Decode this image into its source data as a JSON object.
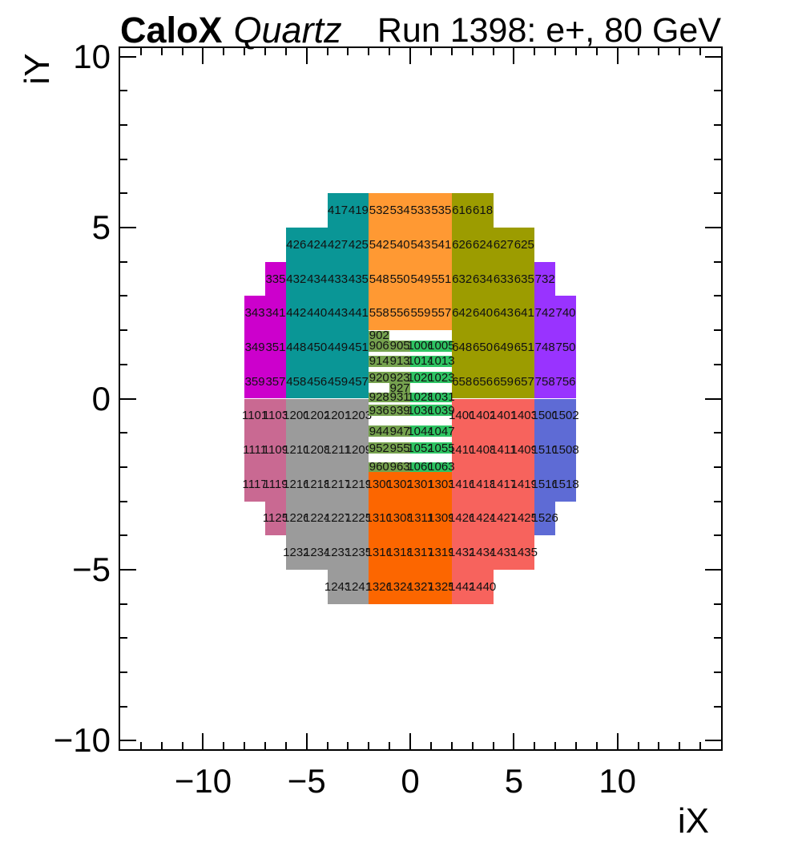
{
  "header": {
    "experiment": "CaloX",
    "detector": "Quartz",
    "run_info": "Run 1398: e+, 80 GeV"
  },
  "axes": {
    "x": {
      "title": "iX",
      "ticks": [
        {
          "value": -10,
          "label": "−10"
        },
        {
          "value": -5,
          "label": "−5"
        },
        {
          "value": 0,
          "label": "0"
        },
        {
          "value": 5,
          "label": "5"
        },
        {
          "value": 10,
          "label": "10"
        }
      ]
    },
    "y": {
      "title": "iY",
      "ticks": [
        {
          "value": 10,
          "label": "10"
        },
        {
          "value": 5,
          "label": "5"
        },
        {
          "value": 0,
          "label": "0"
        },
        {
          "value": -5,
          "label": "−5"
        },
        {
          "value": -10,
          "label": "−10"
        }
      ]
    }
  },
  "chart_data": {
    "type": "heatmap",
    "title": "CaloX Quartz",
    "subtitle": "Run 1398: e+, 80 GeV",
    "xlabel": "iX",
    "ylabel": "iY",
    "xlim": [
      -14,
      15
    ],
    "ylim": [
      -10.25,
      10.25
    ],
    "x_major": [
      -10,
      -5,
      0,
      5,
      10
    ],
    "y_major": [
      -10,
      -5,
      0,
      5,
      10
    ],
    "minor_step": 1,
    "palette": {
      "ch300": "#cc00cc",
      "ch400": "#0a9696",
      "ch500": "#ff9933",
      "ch600": "#9c9c00",
      "ch700": "#9933ff",
      "ch900": "#76a24f",
      "ch1000": "#2ec463",
      "ch1100": "#c96992",
      "ch1200": "#9b9b9b",
      "ch1300": "#fc6600",
      "ch1400": "#f7635d",
      "ch1500": "#5e6bd5"
    },
    "cells_format": "[channel_id, iX_left, iY_top, width, height, color_group]",
    "cells": [
      [
        417,
        -4,
        6,
        1,
        1,
        "ch400"
      ],
      [
        419,
        -3,
        6,
        1,
        1,
        "ch400"
      ],
      [
        426,
        -6,
        5,
        1,
        1,
        "ch400"
      ],
      [
        424,
        -5,
        5,
        1,
        1,
        "ch400"
      ],
      [
        427,
        -4,
        5,
        1,
        1,
        "ch400"
      ],
      [
        425,
        -3,
        5,
        1,
        1,
        "ch400"
      ],
      [
        432,
        -6,
        4,
        1,
        1,
        "ch400"
      ],
      [
        434,
        -5,
        4,
        1,
        1,
        "ch400"
      ],
      [
        433,
        -4,
        4,
        1,
        1,
        "ch400"
      ],
      [
        435,
        -3,
        4,
        1,
        1,
        "ch400"
      ],
      [
        442,
        -6,
        3,
        1,
        1,
        "ch400"
      ],
      [
        440,
        -5,
        3,
        1,
        1,
        "ch400"
      ],
      [
        443,
        -4,
        3,
        1,
        1,
        "ch400"
      ],
      [
        441,
        -3,
        3,
        1,
        1,
        "ch400"
      ],
      [
        448,
        -6,
        2,
        1,
        1,
        "ch400"
      ],
      [
        450,
        -5,
        2,
        1,
        1,
        "ch400"
      ],
      [
        449,
        -4,
        2,
        1,
        1,
        "ch400"
      ],
      [
        451,
        -3,
        2,
        1,
        1,
        "ch400"
      ],
      [
        458,
        -6,
        1,
        1,
        1,
        "ch400"
      ],
      [
        456,
        -5,
        1,
        1,
        1,
        "ch400"
      ],
      [
        459,
        -4,
        1,
        1,
        1,
        "ch400"
      ],
      [
        457,
        -3,
        1,
        1,
        1,
        "ch400"
      ],
      [
        532,
        -2,
        6,
        1,
        1,
        "ch500"
      ],
      [
        534,
        -1,
        6,
        1,
        1,
        "ch500"
      ],
      [
        533,
        0,
        6,
        1,
        1,
        "ch500"
      ],
      [
        535,
        1,
        6,
        1,
        1,
        "ch500"
      ],
      [
        542,
        -2,
        5,
        1,
        1,
        "ch500"
      ],
      [
        540,
        -1,
        5,
        1,
        1,
        "ch500"
      ],
      [
        543,
        0,
        5,
        1,
        1,
        "ch500"
      ],
      [
        541,
        1,
        5,
        1,
        1,
        "ch500"
      ],
      [
        548,
        -2,
        4,
        1,
        1,
        "ch500"
      ],
      [
        550,
        -1,
        4,
        1,
        1,
        "ch500"
      ],
      [
        549,
        0,
        4,
        1,
        1,
        "ch500"
      ],
      [
        551,
        1,
        4,
        1,
        1,
        "ch500"
      ],
      [
        558,
        -2,
        3,
        1,
        1,
        "ch500"
      ],
      [
        556,
        -1,
        3,
        1,
        1,
        "ch500"
      ],
      [
        559,
        0,
        3,
        1,
        1,
        "ch500"
      ],
      [
        557,
        1,
        3,
        1,
        1,
        "ch500"
      ],
      [
        616,
        2,
        6,
        1,
        1,
        "ch600"
      ],
      [
        618,
        3,
        6,
        1,
        1,
        "ch600"
      ],
      [
        626,
        2,
        5,
        1,
        1,
        "ch600"
      ],
      [
        624,
        3,
        5,
        1,
        1,
        "ch600"
      ],
      [
        627,
        4,
        5,
        1,
        1,
        "ch600"
      ],
      [
        625,
        5,
        5,
        1,
        1,
        "ch600"
      ],
      [
        632,
        2,
        4,
        1,
        1,
        "ch600"
      ],
      [
        634,
        3,
        4,
        1,
        1,
        "ch600"
      ],
      [
        633,
        4,
        4,
        1,
        1,
        "ch600"
      ],
      [
        635,
        5,
        4,
        1,
        1,
        "ch600"
      ],
      [
        642,
        2,
        3,
        1,
        1,
        "ch600"
      ],
      [
        640,
        3,
        3,
        1,
        1,
        "ch600"
      ],
      [
        643,
        4,
        3,
        1,
        1,
        "ch600"
      ],
      [
        641,
        5,
        3,
        1,
        1,
        "ch600"
      ],
      [
        648,
        2,
        2,
        1,
        1,
        "ch600"
      ],
      [
        650,
        3,
        2,
        1,
        1,
        "ch600"
      ],
      [
        649,
        4,
        2,
        1,
        1,
        "ch600"
      ],
      [
        651,
        5,
        2,
        1,
        1,
        "ch600"
      ],
      [
        658,
        2,
        1,
        1,
        1,
        "ch600"
      ],
      [
        656,
        3,
        1,
        1,
        1,
        "ch600"
      ],
      [
        659,
        4,
        1,
        1,
        1,
        "ch600"
      ],
      [
        657,
        5,
        1,
        1,
        1,
        "ch600"
      ],
      [
        335,
        -7,
        4,
        1,
        1,
        "ch300"
      ],
      [
        343,
        -8,
        3,
        1,
        1,
        "ch300"
      ],
      [
        341,
        -7,
        3,
        1,
        1,
        "ch300"
      ],
      [
        349,
        -8,
        2,
        1,
        1,
        "ch300"
      ],
      [
        351,
        -7,
        2,
        1,
        1,
        "ch300"
      ],
      [
        359,
        -8,
        1,
        1,
        1,
        "ch300"
      ],
      [
        357,
        -7,
        1,
        1,
        1,
        "ch300"
      ],
      [
        732,
        6,
        4,
        1,
        1,
        "ch700"
      ],
      [
        742,
        6,
        3,
        1,
        1,
        "ch700"
      ],
      [
        740,
        7,
        3,
        1,
        1,
        "ch700"
      ],
      [
        748,
        6,
        2,
        1,
        1,
        "ch700"
      ],
      [
        750,
        7,
        2,
        1,
        1,
        "ch700"
      ],
      [
        758,
        6,
        1,
        1,
        1,
        "ch700"
      ],
      [
        756,
        7,
        1,
        1,
        1,
        "ch700"
      ],
      [
        1101,
        -8,
        0,
        1,
        1,
        "ch1100"
      ],
      [
        1103,
        -7,
        0,
        1,
        1,
        "ch1100"
      ],
      [
        1111,
        -8,
        -1,
        1,
        1,
        "ch1100"
      ],
      [
        1109,
        -7,
        -1,
        1,
        1,
        "ch1100"
      ],
      [
        1117,
        -8,
        -2,
        1,
        1,
        "ch1100"
      ],
      [
        1119,
        -7,
        -2,
        1,
        1,
        "ch1100"
      ],
      [
        1125,
        -7,
        -3,
        1,
        1,
        "ch1100"
      ],
      [
        1200,
        -6,
        0,
        1,
        1,
        "ch1200"
      ],
      [
        1202,
        -5,
        0,
        1,
        1,
        "ch1200"
      ],
      [
        1201,
        -4,
        0,
        1,
        1,
        "ch1200"
      ],
      [
        1203,
        -3,
        0,
        1,
        1,
        "ch1200"
      ],
      [
        1210,
        -6,
        -1,
        1,
        1,
        "ch1200"
      ],
      [
        1208,
        -5,
        -1,
        1,
        1,
        "ch1200"
      ],
      [
        1211,
        -4,
        -1,
        1,
        1,
        "ch1200"
      ],
      [
        1209,
        -3,
        -1,
        1,
        1,
        "ch1200"
      ],
      [
        1216,
        -6,
        -2,
        1,
        1,
        "ch1200"
      ],
      [
        1218,
        -5,
        -2,
        1,
        1,
        "ch1200"
      ],
      [
        1217,
        -4,
        -2,
        1,
        1,
        "ch1200"
      ],
      [
        1219,
        -3,
        -2,
        1,
        1,
        "ch1200"
      ],
      [
        1226,
        -6,
        -3,
        1,
        1,
        "ch1200"
      ],
      [
        1224,
        -5,
        -3,
        1,
        1,
        "ch1200"
      ],
      [
        1227,
        -4,
        -3,
        1,
        1,
        "ch1200"
      ],
      [
        1225,
        -3,
        -3,
        1,
        1,
        "ch1200"
      ],
      [
        1232,
        -6,
        -4,
        1,
        1,
        "ch1200"
      ],
      [
        1234,
        -5,
        -4,
        1,
        1,
        "ch1200"
      ],
      [
        1233,
        -4,
        -4,
        1,
        1,
        "ch1200"
      ],
      [
        1235,
        -3,
        -4,
        1,
        1,
        "ch1200"
      ],
      [
        1243,
        -4,
        -5,
        1,
        1,
        "ch1200"
      ],
      [
        1241,
        -3,
        -5,
        1,
        1,
        "ch1200"
      ],
      [
        1300,
        -2,
        -2,
        1,
        1,
        "ch1300"
      ],
      [
        1302,
        -1,
        -2,
        1,
        1,
        "ch1300"
      ],
      [
        1301,
        0,
        -2,
        1,
        1,
        "ch1300"
      ],
      [
        1303,
        1,
        -2,
        1,
        1,
        "ch1300"
      ],
      [
        1310,
        -2,
        -3,
        1,
        1,
        "ch1300"
      ],
      [
        1308,
        -1,
        -3,
        1,
        1,
        "ch1300"
      ],
      [
        1311,
        0,
        -3,
        1,
        1,
        "ch1300"
      ],
      [
        1309,
        1,
        -3,
        1,
        1,
        "ch1300"
      ],
      [
        1316,
        -2,
        -4,
        1,
        1,
        "ch1300"
      ],
      [
        1318,
        -1,
        -4,
        1,
        1,
        "ch1300"
      ],
      [
        1317,
        0,
        -4,
        1,
        1,
        "ch1300"
      ],
      [
        1319,
        1,
        -4,
        1,
        1,
        "ch1300"
      ],
      [
        1326,
        -2,
        -5,
        1,
        1,
        "ch1300"
      ],
      [
        1324,
        -1,
        -5,
        1,
        1,
        "ch1300"
      ],
      [
        1327,
        0,
        -5,
        1,
        1,
        "ch1300"
      ],
      [
        1325,
        1,
        -5,
        1,
        1,
        "ch1300"
      ],
      [
        1400,
        2,
        0,
        1,
        1,
        "ch1400"
      ],
      [
        1402,
        3,
        0,
        1,
        1,
        "ch1400"
      ],
      [
        1401,
        4,
        0,
        1,
        1,
        "ch1400"
      ],
      [
        1403,
        5,
        0,
        1,
        1,
        "ch1400"
      ],
      [
        1410,
        2,
        -1,
        1,
        1,
        "ch1400"
      ],
      [
        1408,
        3,
        -1,
        1,
        1,
        "ch1400"
      ],
      [
        1411,
        4,
        -1,
        1,
        1,
        "ch1400"
      ],
      [
        1409,
        5,
        -1,
        1,
        1,
        "ch1400"
      ],
      [
        1416,
        2,
        -2,
        1,
        1,
        "ch1400"
      ],
      [
        1418,
        3,
        -2,
        1,
        1,
        "ch1400"
      ],
      [
        1417,
        4,
        -2,
        1,
        1,
        "ch1400"
      ],
      [
        1419,
        5,
        -2,
        1,
        1,
        "ch1400"
      ],
      [
        1426,
        2,
        -3,
        1,
        1,
        "ch1400"
      ],
      [
        1424,
        3,
        -3,
        1,
        1,
        "ch1400"
      ],
      [
        1427,
        4,
        -3,
        1,
        1,
        "ch1400"
      ],
      [
        1425,
        5,
        -3,
        1,
        1,
        "ch1400"
      ],
      [
        1432,
        2,
        -4,
        1,
        1,
        "ch1400"
      ],
      [
        1434,
        3,
        -4,
        1,
        1,
        "ch1400"
      ],
      [
        1433,
        4,
        -4,
        1,
        1,
        "ch1400"
      ],
      [
        1435,
        5,
        -4,
        1,
        1,
        "ch1400"
      ],
      [
        1442,
        2,
        -5,
        1,
        1,
        "ch1400"
      ],
      [
        1440,
        3,
        -5,
        1,
        1,
        "ch1400"
      ],
      [
        1500,
        6,
        0,
        1,
        1,
        "ch1500"
      ],
      [
        1502,
        7,
        0,
        1,
        1,
        "ch1500"
      ],
      [
        1510,
        6,
        -1,
        1,
        1,
        "ch1500"
      ],
      [
        1508,
        7,
        -1,
        1,
        1,
        "ch1500"
      ],
      [
        1516,
        6,
        -2,
        1,
        1,
        "ch1500"
      ],
      [
        1518,
        7,
        -2,
        1,
        1,
        "ch1500"
      ],
      [
        1526,
        6,
        -3,
        1,
        1,
        "ch1500"
      ],
      [
        902,
        -2,
        1.98,
        1,
        0.28,
        "ch900"
      ],
      [
        906,
        -2,
        1.7,
        1,
        0.33,
        "ch900"
      ],
      [
        905,
        -1,
        1.7,
        1,
        0.33,
        "ch900"
      ],
      [
        1006,
        0,
        1.7,
        1,
        0.33,
        "ch1000"
      ],
      [
        1005,
        1,
        1.7,
        1,
        0.33,
        "ch1000"
      ],
      [
        914,
        -2,
        1.25,
        1,
        0.32,
        "ch900"
      ],
      [
        913,
        -1,
        1.25,
        1,
        0.32,
        "ch900"
      ],
      [
        1014,
        0,
        1.25,
        1,
        0.32,
        "ch1000"
      ],
      [
        1013,
        1,
        1.25,
        1,
        0.32,
        "ch1000"
      ],
      [
        920,
        -2,
        0.78,
        1,
        0.33,
        "ch900"
      ],
      [
        923,
        -1,
        0.78,
        1,
        0.33,
        "ch900"
      ],
      [
        1020,
        0,
        0.78,
        1,
        0.33,
        "ch1000"
      ],
      [
        1023,
        1,
        0.78,
        1,
        0.33,
        "ch1000"
      ],
      [
        927,
        -1,
        0.45,
        1,
        0.27,
        "ch900"
      ],
      [
        928,
        -2,
        0.18,
        1,
        0.28,
        "ch900"
      ],
      [
        931,
        -1,
        0.18,
        1,
        0.28,
        "ch900"
      ],
      [
        1028,
        0,
        0.18,
        1,
        0.28,
        "ch1000"
      ],
      [
        1031,
        1,
        0.18,
        1,
        0.28,
        "ch1000"
      ],
      [
        936,
        -2,
        -0.18,
        1,
        0.33,
        "ch900"
      ],
      [
        939,
        -1,
        -0.18,
        1,
        0.33,
        "ch900"
      ],
      [
        1036,
        0,
        -0.18,
        1,
        0.33,
        "ch1000"
      ],
      [
        1039,
        1,
        -0.18,
        1,
        0.33,
        "ch1000"
      ],
      [
        944,
        -2,
        -0.79,
        1,
        0.33,
        "ch900"
      ],
      [
        947,
        -1,
        -0.79,
        1,
        0.33,
        "ch900"
      ],
      [
        1044,
        0,
        -0.79,
        1,
        0.33,
        "ch1000"
      ],
      [
        1047,
        1,
        -0.79,
        1,
        0.33,
        "ch1000"
      ],
      [
        952,
        -2,
        -1.28,
        1,
        0.33,
        "ch900"
      ],
      [
        955,
        -1,
        -1.28,
        1,
        0.33,
        "ch900"
      ],
      [
        1052,
        0,
        -1.28,
        1,
        0.33,
        "ch1000"
      ],
      [
        1055,
        1,
        -1.28,
        1,
        0.33,
        "ch1000"
      ],
      [
        960,
        -2,
        -1.86,
        1,
        0.28,
        "ch900"
      ],
      [
        963,
        -1,
        -1.86,
        1,
        0.28,
        "ch900"
      ],
      [
        1060,
        0,
        -1.86,
        1,
        0.28,
        "ch1000"
      ],
      [
        1063,
        1,
        -1.86,
        1,
        0.28,
        "ch1000"
      ]
    ]
  }
}
